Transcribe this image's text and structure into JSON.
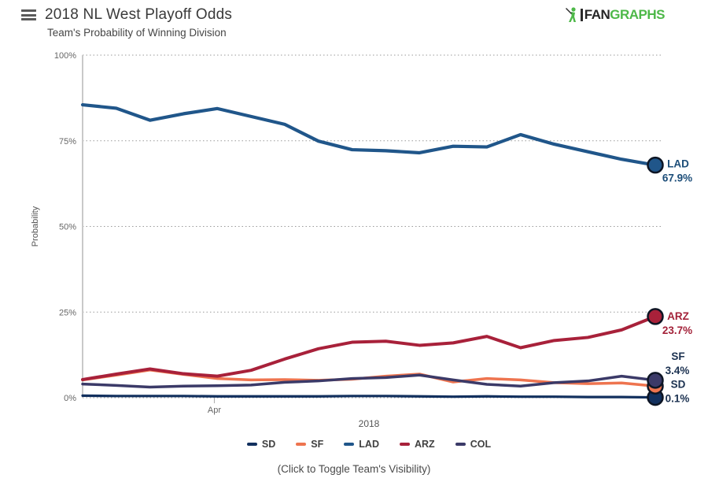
{
  "header": {
    "title": "2018 NL West Playoff Odds",
    "subtitle": "Team's Probability of Winning Division",
    "logo_fan": "FAN",
    "logo_graphs": "GRAPHS",
    "logo_green": "#4db848"
  },
  "chart_data": {
    "type": "line",
    "title": "2018 NL West Playoff Odds",
    "subtitle": "Team's Probability of Winning Division",
    "ylabel": "Probability",
    "yticks": [
      "0%",
      "25%",
      "50%",
      "75%",
      "100%"
    ],
    "ylim": [
      0,
      100
    ],
    "grid": "dotted-horizontal",
    "x_axis_year_label": "2018",
    "x_tick_label": "Apr",
    "x_tick_frac": 0.23,
    "legend_position": "bottom",
    "legend_order": [
      "SD",
      "SF",
      "LAD",
      "ARZ",
      "COL"
    ],
    "footer": "(Click to Toggle Team's Visibility)",
    "series": [
      {
        "name": "SD",
        "color": "#12305e",
        "label_color": "#1b3150",
        "end_label": "SD",
        "end_value": "0.1%",
        "values": [
          0.6,
          0.5,
          0.5,
          0.5,
          0.4,
          0.4,
          0.4,
          0.4,
          0.5,
          0.5,
          0.4,
          0.3,
          0.4,
          0.3,
          0.3,
          0.2,
          0.2,
          0.1
        ]
      },
      {
        "name": "SF",
        "color": "#ee744f",
        "label_color": "#1b3150",
        "end_label": "SF",
        "end_value": "3.4%",
        "values": [
          5.2,
          6.6,
          8.1,
          6.8,
          5.6,
          5.2,
          5.3,
          5.1,
          5.4,
          6.3,
          6.9,
          4.6,
          5.6,
          5.2,
          4.4,
          4.1,
          4.3,
          3.4
        ]
      },
      {
        "name": "LAD",
        "color": "#20568a",
        "label_color": "#1d4e79",
        "end_label": "LAD",
        "end_value": "67.9%",
        "values": [
          85.5,
          84.5,
          81.0,
          82.9,
          84.4,
          82.1,
          79.8,
          74.9,
          72.4,
          72.1,
          71.5,
          73.4,
          73.2,
          76.8,
          74.0,
          71.8,
          69.6,
          67.9
        ]
      },
      {
        "name": "ARZ",
        "color": "#a8213a",
        "label_color": "#a32239",
        "end_label": "ARZ",
        "end_value": "23.7%",
        "values": [
          5.3,
          6.9,
          8.4,
          7.0,
          6.3,
          8.0,
          11.3,
          14.3,
          16.2,
          16.5,
          15.3,
          16.0,
          17.9,
          14.6,
          16.7,
          17.6,
          19.8,
          23.7
        ]
      },
      {
        "name": "COL",
        "color": "#3b3a68",
        "label_color": "#3b3a68",
        "end_label": "",
        "end_value": "",
        "values": [
          4.0,
          3.6,
          3.1,
          3.4,
          3.5,
          3.7,
          4.5,
          4.9,
          5.6,
          5.9,
          6.6,
          5.2,
          3.9,
          3.4,
          4.4,
          4.9,
          6.3,
          5.1
        ]
      }
    ]
  }
}
